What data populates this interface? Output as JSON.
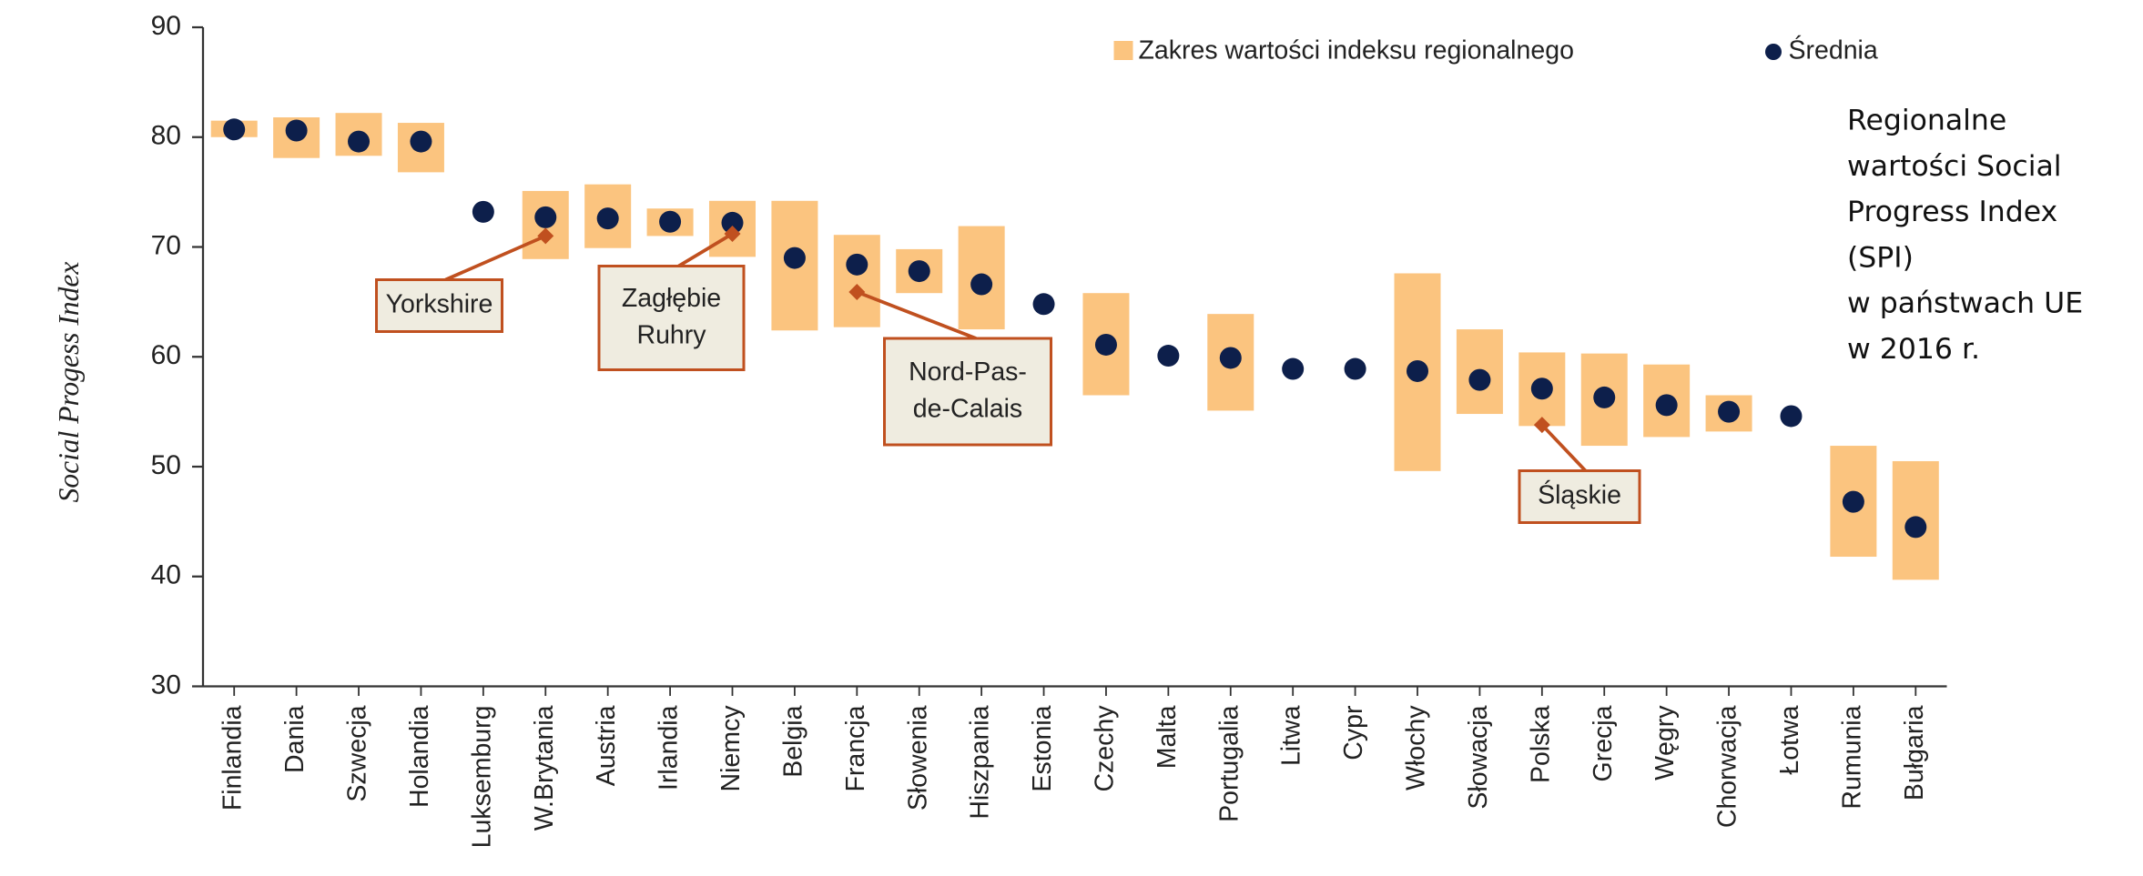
{
  "chart_data": {
    "type": "range-dot",
    "y_label": "Social Progess Index",
    "side_text": [
      "Regionalne",
      "wartości Social",
      "Progress Index",
      "(SPI)",
      "w państwach UE",
      "w 2016 r."
    ],
    "categories": [
      "Finlandia",
      "Dania",
      "Szwecja",
      "Holandia",
      "Luksemburg",
      "W.Brytania",
      "Austria",
      "Irlandia",
      "Niemcy",
      "Belgia",
      "Francja",
      "Słowenia",
      "Hiszpania",
      "Estonia",
      "Czechy",
      "Malta",
      "Portugalia",
      "Litwa",
      "Cypr",
      "Włochy",
      "Słowacja",
      "Polska",
      "Grecja",
      "Węgry",
      "Chorwacja",
      "Łotwa",
      "Rumunia",
      "Bułgaria"
    ],
    "series": [
      {
        "name": "Zakres wartości indeksu regionalnego",
        "color": "#fbc47f",
        "min": [
          80.0,
          78.1,
          78.3,
          76.8,
          null,
          68.9,
          69.9,
          71.0,
          69.1,
          62.4,
          62.7,
          65.8,
          62.5,
          null,
          56.5,
          null,
          55.1,
          null,
          null,
          49.6,
          54.8,
          53.7,
          51.9,
          52.7,
          53.2,
          null,
          41.8,
          39.7
        ],
        "max": [
          81.5,
          81.8,
          82.2,
          81.3,
          null,
          75.1,
          75.7,
          73.5,
          74.2,
          74.2,
          71.1,
          69.8,
          71.9,
          null,
          65.8,
          null,
          63.9,
          null,
          null,
          67.6,
          62.5,
          60.4,
          60.3,
          59.3,
          56.5,
          null,
          51.9,
          50.5
        ]
      },
      {
        "name": "Średnia",
        "color": "#0d1f4b",
        "values": [
          80.7,
          80.6,
          79.6,
          79.6,
          73.2,
          72.7,
          72.6,
          72.3,
          72.2,
          69.0,
          68.4,
          67.8,
          66.6,
          64.8,
          61.1,
          60.1,
          59.9,
          58.9,
          58.9,
          58.7,
          57.9,
          57.1,
          56.3,
          55.6,
          55.0,
          54.6,
          46.8,
          44.5
        ]
      }
    ],
    "annotations": [
      {
        "text": [
          "Yorkshire"
        ],
        "category": "W.Brytania",
        "value": 71.0
      },
      {
        "text": [
          "Zagłębie",
          "Ruhry"
        ],
        "category": "Niemcy",
        "value": 71.2
      },
      {
        "text": [
          "Nord-Pas-",
          "de-Calais"
        ],
        "category": "Francja",
        "value": 65.9
      },
      {
        "text": [
          "Śląskie"
        ],
        "category": "Polska",
        "value": 53.8
      }
    ],
    "annotation_color": "#c0501f",
    "ylim": [
      30,
      90
    ],
    "yticks": [
      30,
      40,
      50,
      60,
      70,
      80,
      90
    ]
  }
}
